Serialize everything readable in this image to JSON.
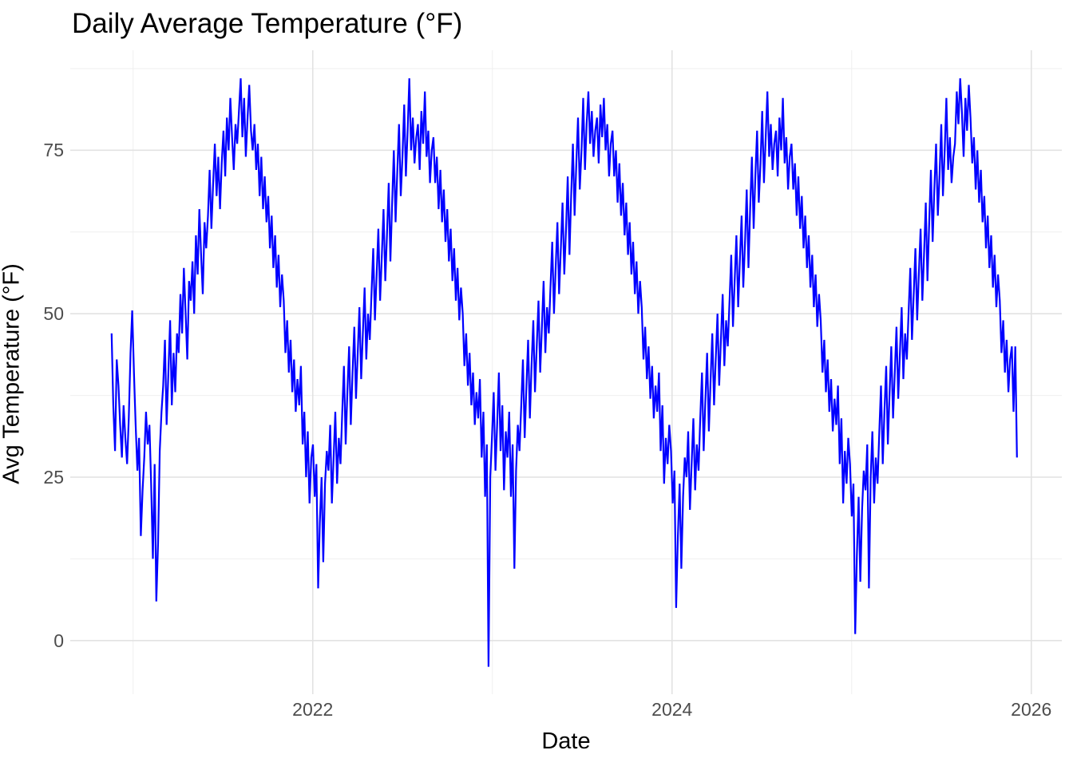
{
  "title": "Daily Average Temperature (°F)",
  "colors": {
    "line": "#0000FF",
    "grid_major": "#E2E2E2",
    "grid_minor": "#EFEFEF",
    "tick_text": "#4D4D4D",
    "title_text": "#000000",
    "background": "#FFFFFF"
  },
  "chart_data": {
    "type": "line",
    "title": "Daily Average Temperature (°F)",
    "xlabel": "Date",
    "ylabel": "Avg Temperature (°F)",
    "legend": "none",
    "grid": "on",
    "xlim": [
      2020.65,
      2026.17
    ],
    "ylim": [
      -8.2,
      90.3
    ],
    "x_ticks": [
      {
        "value": 2022,
        "label": "2022"
      },
      {
        "value": 2024,
        "label": "2024"
      },
      {
        "value": 2026,
        "label": "2026"
      }
    ],
    "x_minor_breaks": [
      2021,
      2023,
      2025
    ],
    "y_ticks": [
      {
        "value": 0,
        "label": "0"
      },
      {
        "value": 25,
        "label": "25"
      },
      {
        "value": 50,
        "label": "50"
      },
      {
        "value": 75,
        "label": "75"
      }
    ],
    "y_minor_breaks": [
      12.5,
      37.5,
      62.5,
      87.5
    ],
    "series": [
      {
        "name": "avg-daily-temperature",
        "color": "#0000FF",
        "start_x": 2020.88,
        "step_x_years": 0.0095825,
        "step_days": 3.5,
        "values": [
          47,
          36,
          29,
          43,
          39,
          33,
          28,
          36,
          31,
          27,
          34,
          44,
          50.5,
          41,
          33,
          26,
          31,
          16,
          23,
          28,
          35,
          30,
          33,
          24,
          12.5,
          27,
          6,
          15,
          29,
          35,
          39,
          46,
          33,
          41,
          49,
          36,
          44,
          38,
          47,
          44,
          53,
          47,
          57,
          50,
          43,
          55,
          52,
          58,
          50,
          62,
          56,
          66,
          59,
          53,
          64,
          60,
          65,
          72,
          63,
          70,
          76,
          68,
          74,
          66,
          73,
          78,
          71,
          80,
          75,
          83,
          77,
          72,
          79,
          76,
          81,
          86,
          77,
          83,
          74,
          80,
          85,
          78,
          75,
          79,
          72,
          76,
          68,
          74,
          66,
          71,
          64,
          68,
          60,
          65,
          57,
          62,
          54,
          59,
          51,
          56,
          52,
          44,
          49,
          41,
          46,
          38,
          43,
          35,
          40,
          36,
          42,
          30,
          35,
          25,
          32,
          21,
          28,
          30,
          22,
          27,
          8,
          18,
          25,
          12,
          24,
          29,
          26,
          33,
          21,
          28,
          35,
          24,
          31,
          27,
          35,
          42,
          30,
          38,
          45,
          33,
          41,
          48,
          37,
          44,
          51,
          40,
          47,
          54,
          43,
          50,
          46,
          53,
          60,
          49,
          56,
          63,
          52,
          59,
          66,
          55,
          62,
          70,
          58,
          67,
          75,
          64,
          72,
          79,
          68,
          74,
          82,
          71,
          78,
          86,
          75,
          80,
          73,
          77,
          79,
          72,
          81,
          76,
          84,
          74,
          78,
          70,
          75,
          77,
          70,
          74,
          66,
          72,
          64,
          69,
          61,
          66,
          58,
          63,
          55,
          60,
          52,
          57,
          49,
          54,
          50,
          42,
          47,
          39,
          44,
          36,
          41,
          33,
          38,
          34,
          40,
          28,
          35,
          22,
          30,
          -4,
          25,
          31,
          38,
          26,
          33,
          41,
          29,
          36,
          23,
          32,
          28,
          35,
          22,
          30,
          11,
          26,
          33,
          29,
          36,
          43,
          31,
          39,
          46,
          34,
          42,
          49,
          38,
          45,
          52,
          41,
          48,
          55,
          44,
          51,
          47,
          54,
          61,
          50,
          57,
          64,
          53,
          60,
          67,
          56,
          63,
          71,
          59,
          68,
          76,
          65,
          73,
          80,
          69,
          75,
          83,
          72,
          79,
          84,
          76,
          81,
          74,
          78,
          80,
          73,
          82,
          77,
          83,
          75,
          79,
          71,
          76,
          78,
          71,
          75,
          67,
          73,
          65,
          70,
          62,
          67,
          59,
          64,
          56,
          61,
          53,
          58,
          50,
          55,
          51,
          43,
          48,
          40,
          45,
          37,
          42,
          34,
          39,
          35,
          41,
          29,
          36,
          24,
          31,
          27,
          33,
          29,
          21,
          26,
          5,
          16,
          24,
          11,
          22,
          28,
          25,
          32,
          20,
          27,
          34,
          23,
          30,
          26,
          34,
          41,
          29,
          37,
          44,
          32,
          40,
          47,
          36,
          43,
          50,
          39,
          46,
          53,
          42,
          49,
          45,
          52,
          59,
          48,
          55,
          62,
          51,
          58,
          65,
          54,
          61,
          69,
          57,
          66,
          74,
          63,
          71,
          78,
          67,
          73,
          81,
          70,
          77,
          84,
          74,
          79,
          72,
          76,
          78,
          71,
          80,
          75,
          83,
          73,
          77,
          69,
          74,
          76,
          69,
          73,
          65,
          71,
          63,
          68,
          60,
          65,
          57,
          62,
          54,
          59,
          51,
          56,
          48,
          53,
          49,
          41,
          46,
          38,
          43,
          35,
          40,
          32,
          37,
          33,
          39,
          27,
          34,
          21,
          29,
          24,
          31,
          27,
          19,
          24,
          1,
          13,
          22,
          9,
          20,
          26,
          23,
          30,
          8,
          25,
          32,
          21,
          28,
          24,
          32,
          39,
          27,
          35,
          42,
          30,
          38,
          45,
          34,
          41,
          48,
          37,
          44,
          51,
          40,
          47,
          43,
          50,
          57,
          46,
          53,
          60,
          49,
          56,
          63,
          52,
          59,
          67,
          55,
          64,
          72,
          61,
          69,
          76,
          65,
          71,
          79,
          68,
          75,
          83,
          72,
          77,
          70,
          74,
          76,
          84,
          79,
          86,
          81,
          74,
          83,
          78,
          85,
          80,
          73,
          77,
          69,
          75,
          67,
          72,
          64,
          68,
          60,
          65,
          57,
          62,
          54,
          59,
          51,
          56,
          52,
          44,
          49,
          41,
          46,
          38,
          43,
          45,
          35,
          45,
          28
        ]
      }
    ]
  }
}
